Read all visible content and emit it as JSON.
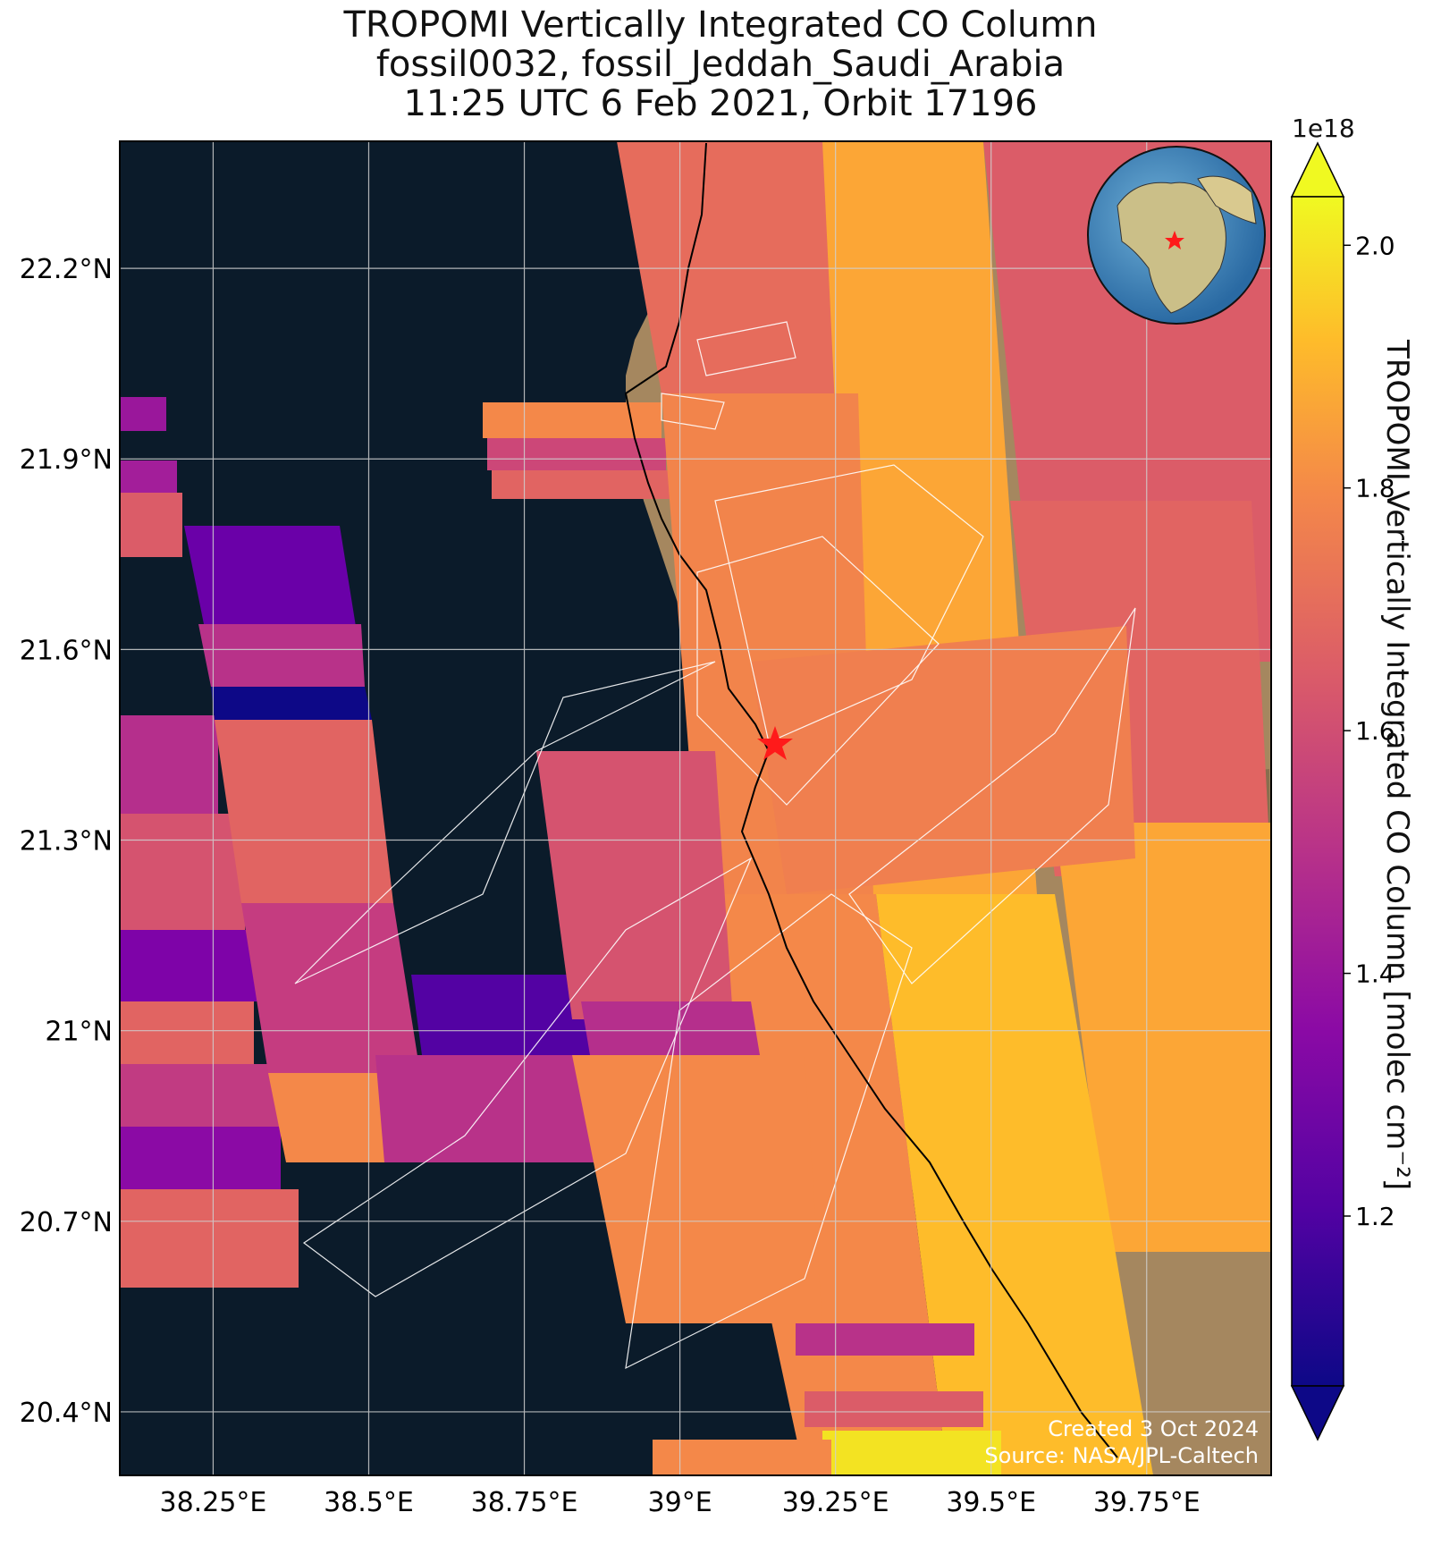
{
  "title": {
    "line1": "TROPOMI Vertically Integrated CO Column",
    "line2": "fossil0032, fossil_Jeddah_Saudi_Arabia",
    "line3": "11:25 UTC 6 Feb 2021, Orbit 17196"
  },
  "map": {
    "lon_range": [
      38.1,
      39.95
    ],
    "lat_range": [
      20.3,
      22.4
    ],
    "lon_ticks": [
      "38.25°E",
      "38.5°E",
      "38.75°E",
      "39°E",
      "39.25°E",
      "39.5°E",
      "39.75°E"
    ],
    "lat_ticks": [
      "22.2°N",
      "21.9°N",
      "21.6°N",
      "21.3°N",
      "21°N",
      "20.7°N",
      "20.4°N"
    ],
    "gridlines": true,
    "marker": {
      "name": "Jeddah",
      "lon": 39.17,
      "lat": 21.49,
      "symbol": "red-star"
    },
    "inset": "globe-locator",
    "credit_line1": "Created 3 Oct 2024",
    "credit_line2": "Source: NASA/JPL-Caltech"
  },
  "colorbar": {
    "label": "TROPOMI Vertically Integrated CO Column [molec cm$^{-2}$]",
    "label_display": "TROPOMI Vertically Integrated CO Column [molec cm⁻²]",
    "exponent": "1e18",
    "ticks": [
      "1.2",
      "1.4",
      "1.6",
      "1.8",
      "2.0"
    ],
    "tick_values": [
      1.2,
      1.4,
      1.6,
      1.8,
      2.0
    ],
    "range": [
      1.06,
      2.04
    ],
    "colormap": "plasma",
    "extend": "both"
  },
  "chart_data": {
    "type": "heatmap",
    "title": "TROPOMI Vertically Integrated CO Column",
    "units": "1e18 molec cm-2",
    "swaths": [
      {
        "lon": 38.22,
        "lat": 22.0,
        "value": 1.48
      },
      {
        "lon": 38.2,
        "lat": 21.85,
        "value": 1.6
      },
      {
        "lon": 38.4,
        "lat": 21.8,
        "value": 1.35
      },
      {
        "lon": 38.45,
        "lat": 21.55,
        "value": 1.1
      },
      {
        "lon": 38.5,
        "lat": 21.4,
        "value": 1.7
      },
      {
        "lon": 38.75,
        "lat": 21.05,
        "value": 1.28
      },
      {
        "lon": 39.15,
        "lat": 21.4,
        "value": 1.78
      },
      {
        "lon": 39.55,
        "lat": 22.1,
        "value": 1.82
      },
      {
        "lon": 39.7,
        "lat": 21.0,
        "value": 1.85
      },
      {
        "lon": 39.5,
        "lat": 20.45,
        "value": 1.92
      }
    ]
  }
}
